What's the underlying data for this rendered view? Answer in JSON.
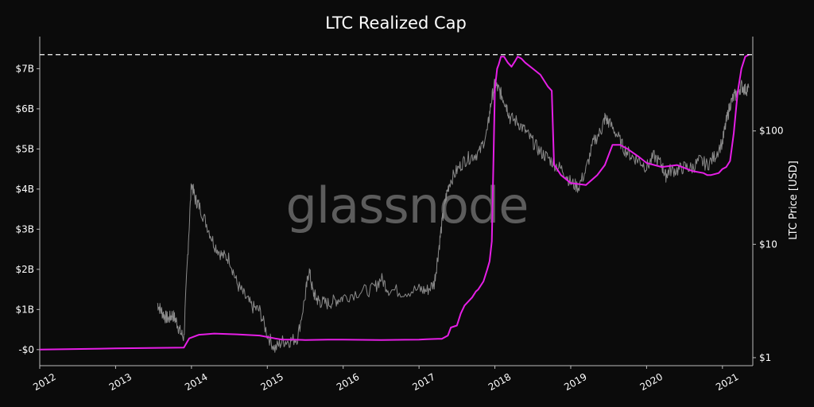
{
  "chart_data": {
    "type": "line",
    "title": "LTC Realized Cap",
    "watermark": "glassnode",
    "xlabel": "",
    "ylabel": "",
    "y2label": "LTC Price [USD]",
    "x_ticks": [
      "2012",
      "2013",
      "2014",
      "2015",
      "2016",
      "2017",
      "2018",
      "2019",
      "2020",
      "2021"
    ],
    "y_ticks": [
      {
        "value": 0,
        "label": "-$0"
      },
      {
        "value": 1,
        "label": "$1B"
      },
      {
        "value": 2,
        "label": "$2B"
      },
      {
        "value": 3,
        "label": "$3B"
      },
      {
        "value": 4,
        "label": "$4B"
      },
      {
        "value": 5,
        "label": "$5B"
      },
      {
        "value": 6,
        "label": "$6B"
      },
      {
        "value": 7,
        "label": "$7B"
      }
    ],
    "y2_ticks": [
      {
        "value": 1,
        "label": "$1"
      },
      {
        "value": 10,
        "label": "$10"
      },
      {
        "value": 100,
        "label": "$100"
      }
    ],
    "xlim": [
      2012.0,
      2021.4
    ],
    "ylim": [
      -0.4,
      7.8
    ],
    "y2lim": [
      0.85,
      680
    ],
    "y2scale": "log",
    "reference_line": {
      "y": 7.35,
      "style": "dashed",
      "color": "#ffffff"
    },
    "colors": {
      "background": "#0b0b0b",
      "realized_cap": "#e61ee6",
      "price": "#8a8a8a",
      "axis": "#bbbbbb"
    },
    "series": [
      {
        "name": "Realized Cap",
        "axis": "left",
        "x": [
          2012.0,
          2013.0,
          2013.9,
          2013.93,
          2013.97,
          2014.1,
          2014.3,
          2014.6,
          2014.9,
          2015.1,
          2015.2,
          2015.35,
          2015.5,
          2015.8,
          2016.0,
          2016.5,
          2017.0,
          2017.1,
          2017.25,
          2017.3,
          2017.38,
          2017.42,
          2017.5,
          2017.55,
          2017.6,
          2017.7,
          2017.75,
          2017.78,
          2017.85,
          2017.9,
          2017.93,
          2017.96,
          2018.0,
          2018.03,
          2018.05,
          2018.08,
          2018.12,
          2018.17,
          2018.22,
          2018.27,
          2018.3,
          2018.35,
          2018.4,
          2018.5,
          2018.6,
          2018.7,
          2018.75,
          2018.78,
          2018.82,
          2018.87,
          2019.0,
          2019.2,
          2019.35,
          2019.45,
          2019.55,
          2019.65,
          2019.75,
          2019.9,
          2020.0,
          2020.2,
          2020.4,
          2020.6,
          2020.75,
          2020.8,
          2020.85,
          2020.95,
          2021.0,
          2021.05,
          2021.1,
          2021.15,
          2021.2,
          2021.25,
          2021.3,
          2021.35
        ],
        "values": [
          0.0,
          0.03,
          0.05,
          0.15,
          0.28,
          0.37,
          0.4,
          0.38,
          0.35,
          0.28,
          0.25,
          0.25,
          0.24,
          0.25,
          0.25,
          0.24,
          0.25,
          0.26,
          0.27,
          0.27,
          0.35,
          0.55,
          0.6,
          0.9,
          1.1,
          1.3,
          1.45,
          1.5,
          1.7,
          2.0,
          2.2,
          2.7,
          6.5,
          7.0,
          7.1,
          7.3,
          7.3,
          7.15,
          7.05,
          7.2,
          7.3,
          7.25,
          7.15,
          7.0,
          6.85,
          6.55,
          6.45,
          4.6,
          4.5,
          4.35,
          4.15,
          4.1,
          4.35,
          4.6,
          5.1,
          5.1,
          5.0,
          4.8,
          4.65,
          4.55,
          4.6,
          4.45,
          4.4,
          4.35,
          4.35,
          4.4,
          4.5,
          4.55,
          4.7,
          5.4,
          6.4,
          7.0,
          7.3,
          7.35
        ]
      },
      {
        "name": "LTC Price",
        "axis": "right",
        "x": [
          2013.55,
          2013.6,
          2013.65,
          2013.7,
          2013.75,
          2013.8,
          2013.85,
          2013.9,
          2013.95,
          2014.0,
          2014.05,
          2014.1,
          2014.2,
          2014.3,
          2014.4,
          2014.5,
          2014.6,
          2014.7,
          2014.8,
          2014.9,
          2015.0,
          2015.1,
          2015.2,
          2015.3,
          2015.4,
          2015.5,
          2015.55,
          2015.6,
          2015.65,
          2015.7,
          2015.8,
          2015.9,
          2016.0,
          2016.2,
          2016.4,
          2016.5,
          2016.6,
          2016.8,
          2017.0,
          2017.1,
          2017.2,
          2017.25,
          2017.3,
          2017.35,
          2017.4,
          2017.5,
          2017.6,
          2017.7,
          2017.8,
          2017.9,
          2017.95,
          2018.0,
          2018.05,
          2018.1,
          2018.15,
          2018.2,
          2018.3,
          2018.4,
          2018.5,
          2018.6,
          2018.7,
          2018.8,
          2018.9,
          2019.0,
          2019.1,
          2019.2,
          2019.3,
          2019.4,
          2019.45,
          2019.5,
          2019.6,
          2019.7,
          2019.8,
          2019.9,
          2020.0,
          2020.1,
          2020.2,
          2020.25,
          2020.3,
          2020.4,
          2020.5,
          2020.6,
          2020.7,
          2020.8,
          2020.9,
          2021.0,
          2021.05,
          2021.1,
          2021.15,
          2021.2,
          2021.25,
          2021.3,
          2021.35
        ],
        "values": [
          3.0,
          2.6,
          2.3,
          2.2,
          2.4,
          2.1,
          1.7,
          1.5,
          8.0,
          35.0,
          25.0,
          22.0,
          15.0,
          10.0,
          8.0,
          7.5,
          4.5,
          3.5,
          2.8,
          2.6,
          1.6,
          1.2,
          1.4,
          1.4,
          1.5,
          3.5,
          6.0,
          3.8,
          3.3,
          3.1,
          3.0,
          3.2,
          3.4,
          3.8,
          4.0,
          5.0,
          4.0,
          3.8,
          4.0,
          3.9,
          4.5,
          8.0,
          15.0,
          25.0,
          35.0,
          45.0,
          55.0,
          60.0,
          65.0,
          100.0,
          180.0,
          260.0,
          230.0,
          200.0,
          170.0,
          130.0,
          120.0,
          100.0,
          80.0,
          65.0,
          58.0,
          50.0,
          45.0,
          35.0,
          32.0,
          45.0,
          80.0,
          100.0,
          130.0,
          120.0,
          95.0,
          70.0,
          60.0,
          55.0,
          48.0,
          60.0,
          50.0,
          40.0,
          45.0,
          45.0,
          48.0,
          47.0,
          55.0,
          50.0,
          60.0,
          80.0,
          120.0,
          170.0,
          200.0,
          220.0,
          250.0,
          230.0,
          240.0
        ]
      }
    ]
  }
}
